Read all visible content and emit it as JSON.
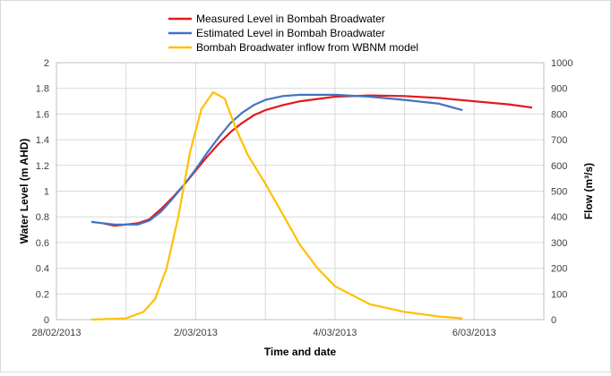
{
  "chart_data": {
    "type": "line",
    "xlabel": "Time and date",
    "ylabel": "Water Level (m AHD)",
    "y2label": "Flow (m³/s)",
    "xlim": [
      "2013-02-28",
      "2013-03-07"
    ],
    "x_ticks": [
      "28/02/2013",
      "2/03/2013",
      "4/03/2013",
      "6/03/2013"
    ],
    "ylim": [
      0,
      2
    ],
    "y_ticks": [
      "0",
      "0.2",
      "0.4",
      "0.6",
      "0.8",
      "1",
      "1.2",
      "1.4",
      "1.6",
      "1.8",
      "2"
    ],
    "y2lim": [
      0,
      1000
    ],
    "y2_ticks": [
      "0",
      "100",
      "200",
      "300",
      "400",
      "500",
      "600",
      "700",
      "800",
      "900",
      "1000"
    ],
    "grid": true,
    "legend_position": "top",
    "series": [
      {
        "name": "Measured Level in Bombah Broadwater",
        "axis": "left",
        "color": "#e31a1c",
        "points": [
          [
            "2013-02-28 16:00",
            0.75
          ],
          [
            "2013-02-28 20:00",
            0.73
          ],
          [
            "2013-03-01 00:00",
            0.74
          ],
          [
            "2013-03-01 04:00",
            0.75
          ],
          [
            "2013-03-01 08:00",
            0.78
          ],
          [
            "2013-03-01 12:00",
            0.86
          ],
          [
            "2013-03-01 16:00",
            0.95
          ],
          [
            "2013-03-01 20:00",
            1.05
          ],
          [
            "2013-03-02 00:00",
            1.16
          ],
          [
            "2013-03-02 04:00",
            1.27
          ],
          [
            "2013-03-02 08:00",
            1.37
          ],
          [
            "2013-03-02 12:00",
            1.46
          ],
          [
            "2013-03-02 16:00",
            1.53
          ],
          [
            "2013-03-02 20:00",
            1.59
          ],
          [
            "2013-03-03 00:00",
            1.63
          ],
          [
            "2013-03-03 06:00",
            1.67
          ],
          [
            "2013-03-03 12:00",
            1.7
          ],
          [
            "2013-03-04 00:00",
            1.735
          ],
          [
            "2013-03-04 12:00",
            1.745
          ],
          [
            "2013-03-05 00:00",
            1.74
          ],
          [
            "2013-03-05 12:00",
            1.725
          ],
          [
            "2013-03-06 00:00",
            1.7
          ],
          [
            "2013-03-06 12:00",
            1.675
          ],
          [
            "2013-03-06 20:00",
            1.65
          ]
        ]
      },
      {
        "name": "Estimated Level in Bombah Broadwater",
        "axis": "left",
        "color": "#4472c4",
        "points": [
          [
            "2013-02-28 12:00",
            0.76
          ],
          [
            "2013-02-28 20:00",
            0.74
          ],
          [
            "2013-03-01 04:00",
            0.74
          ],
          [
            "2013-03-01 08:00",
            0.77
          ],
          [
            "2013-03-01 12:00",
            0.84
          ],
          [
            "2013-03-01 16:00",
            0.94
          ],
          [
            "2013-03-01 20:00",
            1.05
          ],
          [
            "2013-03-02 00:00",
            1.17
          ],
          [
            "2013-03-02 04:00",
            1.3
          ],
          [
            "2013-03-02 08:00",
            1.42
          ],
          [
            "2013-03-02 12:00",
            1.53
          ],
          [
            "2013-03-02 16:00",
            1.61
          ],
          [
            "2013-03-02 20:00",
            1.67
          ],
          [
            "2013-03-03 00:00",
            1.71
          ],
          [
            "2013-03-03 06:00",
            1.74
          ],
          [
            "2013-03-03 12:00",
            1.75
          ],
          [
            "2013-03-04 00:00",
            1.75
          ],
          [
            "2013-03-04 12:00",
            1.735
          ],
          [
            "2013-03-05 00:00",
            1.71
          ],
          [
            "2013-03-05 12:00",
            1.68
          ],
          [
            "2013-03-05 20:00",
            1.63
          ]
        ]
      },
      {
        "name": "Bombah Broadwater inflow from WBNM model",
        "axis": "right",
        "color": "#ffc000",
        "points": [
          [
            "2013-02-28 12:00",
            0
          ],
          [
            "2013-03-01 00:00",
            5
          ],
          [
            "2013-03-01 06:00",
            30
          ],
          [
            "2013-03-01 10:00",
            80
          ],
          [
            "2013-03-01 14:00",
            200
          ],
          [
            "2013-03-01 18:00",
            400
          ],
          [
            "2013-03-01 22:00",
            650
          ],
          [
            "2013-03-02 02:00",
            820
          ],
          [
            "2013-03-02 06:00",
            885
          ],
          [
            "2013-03-02 10:00",
            860
          ],
          [
            "2013-03-02 14:00",
            740
          ],
          [
            "2013-03-02 18:00",
            640
          ],
          [
            "2013-03-03 00:00",
            530
          ],
          [
            "2013-03-03 06:00",
            410
          ],
          [
            "2013-03-03 12:00",
            290
          ],
          [
            "2013-03-03 18:00",
            200
          ],
          [
            "2013-03-04 00:00",
            130
          ],
          [
            "2013-03-04 12:00",
            60
          ],
          [
            "2013-03-05 00:00",
            30
          ],
          [
            "2013-03-05 12:00",
            12
          ],
          [
            "2013-03-05 20:00",
            5
          ]
        ]
      }
    ]
  }
}
